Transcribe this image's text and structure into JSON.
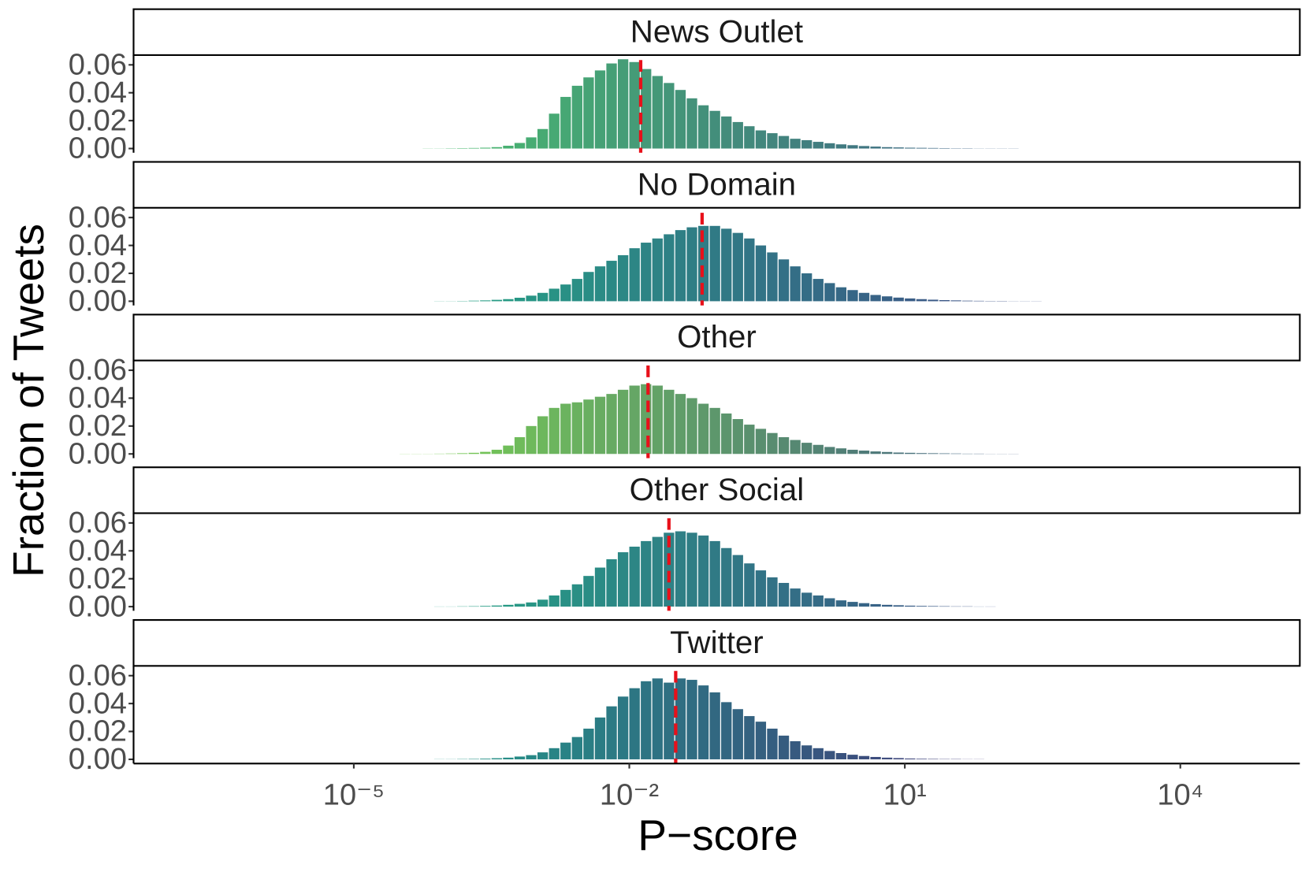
{
  "chart_data": {
    "type": "histogram",
    "xlabel": "P−score",
    "ylabel": "Fraction of Tweets",
    "xscale": "log",
    "xlim": [
      4e-08,
      200000.0
    ],
    "xticks": [
      {
        "value": 1e-05,
        "label": "10⁻⁵"
      },
      {
        "value": 0.01,
        "label": "10⁻²"
      },
      {
        "value": 10,
        "label": "10¹"
      },
      {
        "value": 10000,
        "label": "10⁴"
      }
    ],
    "ylim": [
      -0.003,
      0.067
    ],
    "yticks": [
      {
        "value": 0,
        "label": "0.00"
      },
      0.02,
      0.04,
      0.06
    ],
    "median_color": "#e8101a",
    "bins": [
      3.162e-05,
      4.217e-05,
      5.623e-05,
      7.499e-05,
      0.0001,
      0.0001334,
      0.0001778,
      0.0002371,
      0.0003162,
      0.0004217,
      0.0005623,
      0.0007499,
      0.001,
      0.001334,
      0.001778,
      0.002371,
      0.003162,
      0.004217,
      0.005623,
      0.007499,
      0.01,
      0.01334,
      0.01778,
      0.02371,
      0.03162,
      0.04217,
      0.05623,
      0.07499,
      0.1,
      0.1334,
      0.1778,
      0.2371,
      0.3162,
      0.4217,
      0.5623,
      0.7499,
      1,
      1.334,
      1.778,
      2.371,
      3.162,
      4.217,
      5.623,
      7.499,
      10,
      13.34,
      17.78,
      23.71,
      31.62,
      42.17,
      56.23,
      74.99,
      100,
      133.4,
      177.8,
      237.1,
      316.2,
      421.7,
      562.3,
      749.9,
      1000
    ],
    "series": [
      {
        "name": "News Outlet",
        "colors": [
          "#4ac16d",
          "#3b528b"
        ],
        "median": 0.0133,
        "values": [
          0,
          0,
          0.0001,
          0.0001,
          0.0002,
          0.0003,
          0.0004,
          0.0006,
          0.001,
          0.002,
          0.004,
          0.008,
          0.014,
          0.025,
          0.037,
          0.045,
          0.051,
          0.056,
          0.061,
          0.064,
          0.062,
          0.057,
          0.052,
          0.047,
          0.042,
          0.036,
          0.031,
          0.027,
          0.023,
          0.019,
          0.016,
          0.013,
          0.011,
          0.009,
          0.007,
          0.006,
          0.0048,
          0.0038,
          0.003,
          0.0024,
          0.0018,
          0.0014,
          0.001,
          0.0008,
          0.0006,
          0.0005,
          0.0004,
          0.0003,
          0.0002,
          0.0002,
          0.0001,
          0.0001,
          0.0001,
          0.0001,
          0,
          0,
          0,
          0,
          0,
          0
        ]
      },
      {
        "name": "No Domain",
        "colors": [
          "#22a884",
          "#414487"
        ],
        "median": 0.062,
        "values": [
          0,
          0,
          0,
          0.0001,
          0.0001,
          0.0002,
          0.0004,
          0.0006,
          0.001,
          0.0015,
          0.0025,
          0.004,
          0.006,
          0.009,
          0.012,
          0.016,
          0.021,
          0.025,
          0.029,
          0.033,
          0.038,
          0.042,
          0.045,
          0.048,
          0.051,
          0.053,
          0.054,
          0.054,
          0.052,
          0.049,
          0.045,
          0.04,
          0.035,
          0.03,
          0.025,
          0.02,
          0.016,
          0.013,
          0.01,
          0.008,
          0.006,
          0.0045,
          0.0035,
          0.0026,
          0.002,
          0.0015,
          0.0011,
          0.0008,
          0.0006,
          0.0004,
          0.0003,
          0.0002,
          0.0002,
          0.0001,
          0.0001,
          0.0001,
          0,
          0,
          0,
          0
        ]
      },
      {
        "name": "Other",
        "colors": [
          "#7ad151",
          "#3b528b"
        ],
        "median": 0.016,
        "values": [
          0.0001,
          0.0001,
          0.0001,
          0.0002,
          0.0003,
          0.0005,
          0.0008,
          0.0015,
          0.003,
          0.006,
          0.012,
          0.02,
          0.027,
          0.033,
          0.036,
          0.037,
          0.039,
          0.041,
          0.043,
          0.046,
          0.049,
          0.05,
          0.049,
          0.046,
          0.043,
          0.04,
          0.036,
          0.033,
          0.029,
          0.025,
          0.021,
          0.018,
          0.015,
          0.012,
          0.01,
          0.008,
          0.0065,
          0.005,
          0.004,
          0.003,
          0.0024,
          0.0018,
          0.0014,
          0.001,
          0.0008,
          0.0006,
          0.0005,
          0.0004,
          0.0003,
          0.0002,
          0.0002,
          0.0001,
          0.0001,
          0.0001,
          0,
          0,
          0,
          0,
          0,
          0
        ]
      },
      {
        "name": "Other Social",
        "colors": [
          "#22a884",
          "#414487"
        ],
        "median": 0.027,
        "values": [
          0,
          0,
          0,
          0.0001,
          0.0001,
          0.0002,
          0.0003,
          0.0005,
          0.0008,
          0.0013,
          0.002,
          0.003,
          0.005,
          0.008,
          0.012,
          0.016,
          0.022,
          0.028,
          0.034,
          0.039,
          0.043,
          0.047,
          0.05,
          0.053,
          0.054,
          0.053,
          0.051,
          0.047,
          0.042,
          0.037,
          0.031,
          0.026,
          0.021,
          0.017,
          0.013,
          0.01,
          0.008,
          0.006,
          0.0045,
          0.0034,
          0.0025,
          0.0018,
          0.0013,
          0.001,
          0.0007,
          0.0005,
          0.0004,
          0.0003,
          0.0002,
          0.0002,
          0.0001,
          0.0001,
          0,
          0,
          0,
          0,
          0,
          0,
          0,
          0
        ]
      },
      {
        "name": "Twitter",
        "colors": [
          "#1f9e89",
          "#482878"
        ],
        "median": 0.032,
        "values": [
          0,
          0,
          0,
          0.0001,
          0.0001,
          0.0002,
          0.0003,
          0.0005,
          0.0008,
          0.0012,
          0.002,
          0.003,
          0.005,
          0.008,
          0.012,
          0.016,
          0.022,
          0.03,
          0.038,
          0.045,
          0.051,
          0.056,
          0.058,
          0.055,
          0.058,
          0.057,
          0.053,
          0.048,
          0.041,
          0.036,
          0.031,
          0.027,
          0.022,
          0.017,
          0.013,
          0.01,
          0.008,
          0.006,
          0.0045,
          0.0033,
          0.0024,
          0.0017,
          0.0012,
          0.0009,
          0.0006,
          0.0004,
          0.0003,
          0.0002,
          0.0002,
          0.0001,
          0.0001,
          0,
          0,
          0,
          0,
          0,
          0,
          0,
          0,
          0
        ]
      }
    ]
  }
}
